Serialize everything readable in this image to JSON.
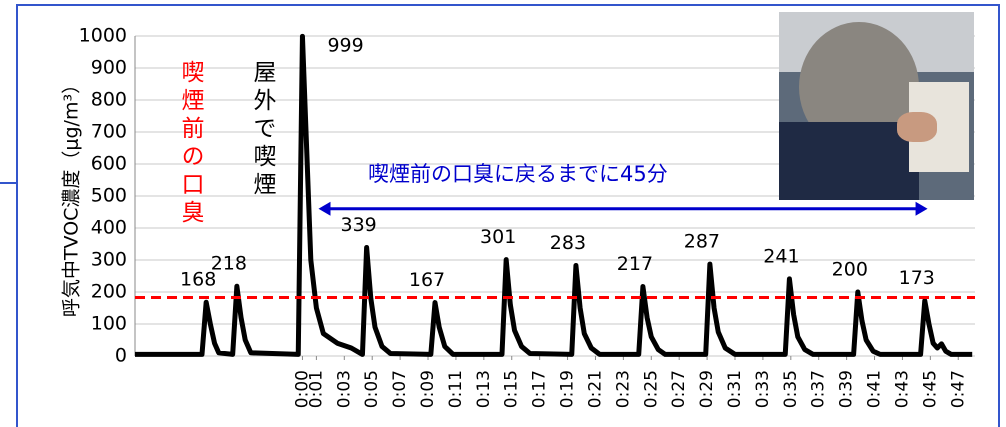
{
  "chart_data": {
    "type": "line",
    "ylabel": "呼気中TVOC濃度（μg/m³）",
    "ylim": [
      0,
      1000
    ],
    "yticks": [
      0,
      100,
      200,
      300,
      400,
      500,
      600,
      700,
      800,
      900,
      1000
    ],
    "xlim": [
      -12,
      48.2
    ],
    "xticks": [
      {
        "value": 0,
        "label": "0:00"
      },
      {
        "value": 1,
        "label": "0:01"
      },
      {
        "value": 3,
        "label": "0:03"
      },
      {
        "value": 5,
        "label": "0:05"
      },
      {
        "value": 7,
        "label": "0:07"
      },
      {
        "value": 9,
        "label": "0:09"
      },
      {
        "value": 11,
        "label": "0:11"
      },
      {
        "value": 13,
        "label": "0:13"
      },
      {
        "value": 15,
        "label": "0:15"
      },
      {
        "value": 17,
        "label": "0:17"
      },
      {
        "value": 19,
        "label": "0:19"
      },
      {
        "value": 21,
        "label": "0:21"
      },
      {
        "value": 23,
        "label": "0:23"
      },
      {
        "value": 25,
        "label": "0:25"
      },
      {
        "value": 27,
        "label": "0:27"
      },
      {
        "value": 29,
        "label": "0:29"
      },
      {
        "value": 31,
        "label": "0:31"
      },
      {
        "value": 33,
        "label": "0:33"
      },
      {
        "value": 35,
        "label": "0:35"
      },
      {
        "value": 37,
        "label": "0:37"
      },
      {
        "value": 39,
        "label": "0:39"
      },
      {
        "value": 41,
        "label": "0:41"
      },
      {
        "value": 43,
        "label": "0:43"
      },
      {
        "value": 45,
        "label": "0:45"
      },
      {
        "value": 47,
        "label": "0:47"
      }
    ],
    "grid": true,
    "series": [
      {
        "color": "#000000",
        "x": [
          -12,
          -7.2,
          -6.9,
          -6.6,
          -6.3,
          -6,
          -5,
          -4.7,
          -4.4,
          -4.1,
          -3.7,
          -0.3,
          0,
          0.3,
          0.6,
          1,
          1.5,
          2.5,
          3.5,
          4.3,
          4.6,
          4.9,
          5.2,
          5.7,
          6.3,
          9.2,
          9.5,
          9.8,
          10.2,
          10.8,
          14.3,
          14.6,
          14.9,
          15.2,
          15.7,
          16.3,
          19.3,
          19.6,
          19.9,
          20.2,
          20.7,
          21.3,
          24.1,
          24.4,
          24.7,
          25,
          25.5,
          26,
          28.9,
          29.2,
          29.5,
          29.8,
          30.3,
          31,
          34.6,
          34.9,
          35.2,
          35.5,
          36,
          36.6,
          39.5,
          39.8,
          40.1,
          40.4,
          40.9,
          41.4,
          44.3,
          44.6,
          44.9,
          45.2,
          45.5,
          45.8,
          46.1,
          46.5,
          48
        ],
        "values": [
          5,
          5,
          168,
          100,
          40,
          10,
          5,
          218,
          120,
          50,
          10,
          5,
          999,
          650,
          300,
          150,
          70,
          40,
          25,
          5,
          339,
          180,
          90,
          30,
          8,
          5,
          167,
          90,
          30,
          5,
          5,
          301,
          160,
          80,
          30,
          8,
          5,
          283,
          150,
          70,
          25,
          5,
          5,
          217,
          120,
          60,
          20,
          5,
          5,
          287,
          150,
          75,
          25,
          5,
          5,
          241,
          130,
          60,
          20,
          5,
          5,
          200,
          110,
          50,
          15,
          5,
          5,
          173,
          100,
          40,
          25,
          38,
          15,
          5,
          5
        ]
      }
    ],
    "reference_line": {
      "value": 183,
      "color": "#ff0000"
    },
    "arrow": {
      "x": [
        1.15,
        44.8
      ],
      "y": 460,
      "color": "#0000cc"
    },
    "annotations": [
      {
        "text": "喫煙前の口臭",
        "color": "#ff0000"
      },
      {
        "text": "屋外で喫煙",
        "color": "#000000"
      },
      {
        "text": "喫煙前の口臭に戻るまでに45分",
        "color": "#0000cc"
      }
    ]
  }
}
